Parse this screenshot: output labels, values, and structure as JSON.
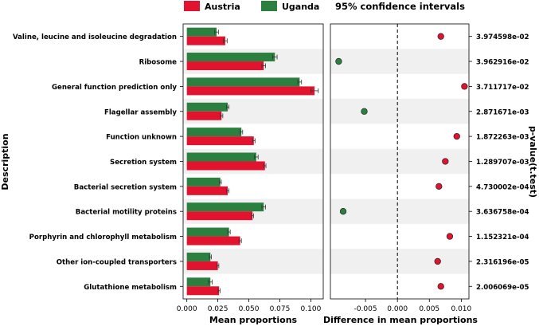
{
  "chart_data": {
    "type": "bar",
    "legend": {
      "placement": "top",
      "entries": [
        {
          "name": "Austria",
          "color": "#e2132f"
        },
        {
          "name": "Uganda",
          "color": "#2b8040"
        }
      ],
      "ci_title": "95% confidence intervals"
    },
    "categories": [
      "Valine, leucine and isoleucine degradation",
      "Ribosome",
      "General function prediction only",
      "Flagellar assembly",
      "Function unknown",
      "Secretion system",
      "Bacterial secretion system",
      "Bacterial motility proteins",
      "Porphyrin and chlorophyll metabolism",
      "Other ion-coupled transporters",
      "Glutathione metabolism"
    ],
    "series": [
      {
        "name": "Uganda",
        "values": [
          0.024,
          0.071,
          0.091,
          0.033,
          0.044,
          0.056,
          0.027,
          0.062,
          0.034,
          0.019,
          0.019
        ]
      },
      {
        "name": "Austria",
        "values": [
          0.031,
          0.062,
          0.103,
          0.028,
          0.054,
          0.063,
          0.033,
          0.053,
          0.043,
          0.025,
          0.026
        ]
      }
    ],
    "errors": {
      "Uganda": [
        0.0015,
        0.0018,
        0.0015,
        0.001,
        0.001,
        0.0015,
        0.0008,
        0.0015,
        0.001,
        0.0008,
        0.0015
      ],
      "Austria": [
        0.0015,
        0.0015,
        0.003,
        0.001,
        0.001,
        0.0008,
        0.001,
        0.0008,
        0.001,
        0.0008,
        0.0008
      ]
    },
    "diff": {
      "values": [
        0.0068,
        -0.0092,
        0.0105,
        -0.0052,
        0.0093,
        0.0075,
        0.0065,
        -0.0085,
        0.0082,
        0.0063,
        0.0068
      ],
      "colors": [
        "#e2132f",
        "#2b8040",
        "#e2132f",
        "#2b8040",
        "#e2132f",
        "#e2132f",
        "#e2132f",
        "#2b8040",
        "#e2132f",
        "#e2132f",
        "#e2132f"
      ]
    },
    "pvalues": [
      "3.974598e-02",
      "3.962916e-02",
      "3.711717e-02",
      "2.871671e-03",
      "1.872263e-03",
      "1.289707e-03",
      "4.730002e-04",
      "3.636758e-04",
      "1.152321e-04",
      "2.316196e-05",
      "2.006069e-05"
    ],
    "xlabel_left": "Mean proportions",
    "xlabel_right": "Difference in mean proportions",
    "ylabel": "Description",
    "ylabel_right": "p-value(t.test)",
    "xlim_left": [
      -0.003,
      0.11
    ],
    "xticks_left": [
      "0.000",
      "0.025",
      "0.050",
      "0.075",
      "0.100"
    ],
    "xlim_right": [
      -0.0105,
      0.0112
    ],
    "xticks_right": [
      "-0.005",
      "0.000",
      "0.005",
      "0.010"
    ]
  }
}
